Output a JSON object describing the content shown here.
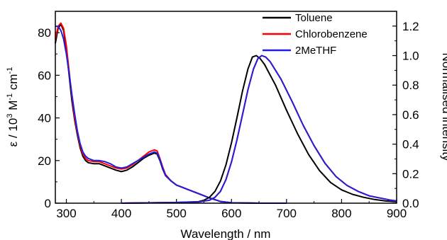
{
  "chart_data": {
    "type": "line",
    "xlabel": "Wavelength / nm",
    "ylabel_left_prefix": "ε / 10",
    "ylabel_left_exp": "3",
    "ylabel_left_mid": " M",
    "ylabel_left_exp2": "-1",
    "ylabel_left_suffix": " cm",
    "ylabel_left_exp3": "-1",
    "ylabel_right": "Normalised intensity",
    "xlim": [
      280,
      900
    ],
    "ylim_left": [
      0,
      90
    ],
    "ylim_right": [
      0,
      1.3
    ],
    "x_ticks": [
      300,
      400,
      500,
      600,
      700,
      800,
      900
    ],
    "y_ticks_left": [
      0,
      20,
      40,
      60,
      80
    ],
    "y_ticks_right": [
      0.0,
      0.2,
      0.4,
      0.6,
      0.8,
      1.0,
      1.2
    ],
    "legend_position": "top-right",
    "legend": [
      {
        "name": "Toluene",
        "color": "#000000"
      },
      {
        "name": "Chlorobenzene",
        "color": "#ff0000"
      },
      {
        "name": "2MeTHF",
        "color": "#1f1fdd"
      }
    ],
    "absorption_series": [
      {
        "name": "Toluene",
        "color": "#000000",
        "axis": "left",
        "points": [
          [
            280,
            75
          ],
          [
            285,
            82
          ],
          [
            290,
            84
          ],
          [
            295,
            81
          ],
          [
            300,
            72
          ],
          [
            305,
            60
          ],
          [
            310,
            48
          ],
          [
            315,
            39
          ],
          [
            320,
            32
          ],
          [
            325,
            26
          ],
          [
            330,
            22
          ],
          [
            335,
            20
          ],
          [
            340,
            19
          ],
          [
            350,
            18.5
          ],
          [
            360,
            18.5
          ],
          [
            370,
            17.5
          ],
          [
            380,
            16.5
          ],
          [
            390,
            15.5
          ],
          [
            400,
            14.8
          ],
          [
            410,
            15.5
          ],
          [
            420,
            17
          ],
          [
            430,
            19
          ],
          [
            440,
            21
          ],
          [
            450,
            22.5
          ],
          [
            460,
            23.5
          ],
          [
            465,
            23
          ],
          [
            470,
            20
          ],
          [
            475,
            16
          ],
          [
            480,
            13
          ],
          [
            490,
            10.5
          ],
          [
            500,
            8.5
          ],
          [
            520,
            6.5
          ],
          [
            540,
            4.5
          ],
          [
            560,
            2.5
          ],
          [
            580,
            0.8
          ],
          [
            600,
            0.2
          ],
          [
            650,
            0
          ],
          [
            700,
            0
          ]
        ]
      },
      {
        "name": "Chlorobenzene",
        "color": "#ff0000",
        "axis": "left",
        "points": [
          [
            280,
            77
          ],
          [
            285,
            83
          ],
          [
            290,
            84.5
          ],
          [
            295,
            82
          ],
          [
            300,
            74
          ],
          [
            305,
            62
          ],
          [
            310,
            50
          ],
          [
            315,
            40
          ],
          [
            320,
            33
          ],
          [
            325,
            27
          ],
          [
            330,
            23
          ],
          [
            335,
            21
          ],
          [
            340,
            20
          ],
          [
            350,
            19.5
          ],
          [
            360,
            19.5
          ],
          [
            370,
            18.5
          ],
          [
            380,
            17.5
          ],
          [
            390,
            16.5
          ],
          [
            400,
            16
          ],
          [
            410,
            16.5
          ],
          [
            420,
            18
          ],
          [
            430,
            20
          ],
          [
            440,
            22
          ],
          [
            450,
            24
          ],
          [
            460,
            25
          ],
          [
            465,
            24.5
          ],
          [
            470,
            21
          ],
          [
            475,
            17
          ],
          [
            480,
            13.5
          ],
          [
            490,
            10.5
          ],
          [
            500,
            8.5
          ],
          [
            520,
            6.5
          ],
          [
            540,
            4.5
          ],
          [
            560,
            2.5
          ],
          [
            580,
            0.8
          ],
          [
            600,
            0.2
          ],
          [
            650,
            0
          ],
          [
            700,
            0
          ]
        ]
      },
      {
        "name": "2MeTHF",
        "color": "#1f1fdd",
        "axis": "left",
        "points": [
          [
            280,
            83
          ],
          [
            285,
            83
          ],
          [
            290,
            81
          ],
          [
            295,
            77
          ],
          [
            300,
            70
          ],
          [
            305,
            61
          ],
          [
            310,
            51
          ],
          [
            315,
            42
          ],
          [
            320,
            34
          ],
          [
            325,
            28
          ],
          [
            330,
            24
          ],
          [
            335,
            22
          ],
          [
            340,
            21
          ],
          [
            350,
            20
          ],
          [
            360,
            20
          ],
          [
            370,
            19.5
          ],
          [
            380,
            18.5
          ],
          [
            390,
            17
          ],
          [
            400,
            16.5
          ],
          [
            410,
            17
          ],
          [
            420,
            18.5
          ],
          [
            430,
            20
          ],
          [
            440,
            21.5
          ],
          [
            450,
            23
          ],
          [
            460,
            24
          ],
          [
            465,
            23.5
          ],
          [
            470,
            20.5
          ],
          [
            475,
            16.5
          ],
          [
            480,
            13
          ],
          [
            490,
            10.5
          ],
          [
            500,
            8.5
          ],
          [
            520,
            6.5
          ],
          [
            540,
            4.5
          ],
          [
            560,
            2.5
          ],
          [
            580,
            0.8
          ],
          [
            600,
            0.2
          ],
          [
            650,
            0
          ],
          [
            700,
            0
          ]
        ]
      }
    ],
    "emission_series": [
      {
        "name": "Toluene",
        "color": "#000000",
        "axis": "right",
        "points": [
          [
            400,
            0
          ],
          [
            500,
            0.005
          ],
          [
            540,
            0.01
          ],
          [
            550,
            0.02
          ],
          [
            560,
            0.04
          ],
          [
            570,
            0.08
          ],
          [
            580,
            0.15
          ],
          [
            590,
            0.26
          ],
          [
            600,
            0.41
          ],
          [
            610,
            0.58
          ],
          [
            620,
            0.76
          ],
          [
            630,
            0.91
          ],
          [
            638,
            0.99
          ],
          [
            645,
            1.0
          ],
          [
            652,
            0.98
          ],
          [
            660,
            0.94
          ],
          [
            680,
            0.8
          ],
          [
            700,
            0.63
          ],
          [
            720,
            0.47
          ],
          [
            740,
            0.33
          ],
          [
            760,
            0.22
          ],
          [
            780,
            0.14
          ],
          [
            800,
            0.09
          ],
          [
            820,
            0.06
          ],
          [
            840,
            0.04
          ],
          [
            860,
            0.025
          ],
          [
            880,
            0.015
          ],
          [
            900,
            0.01
          ]
        ]
      },
      {
        "name": "Chlorobenzene",
        "color": "#ff0000",
        "axis": "right",
        "points": [
          [
            400,
            0
          ],
          [
            500,
            0.005
          ],
          [
            540,
            0.008
          ],
          [
            560,
            0.02
          ],
          [
            570,
            0.04
          ],
          [
            580,
            0.08
          ],
          [
            590,
            0.16
          ],
          [
            600,
            0.28
          ],
          [
            610,
            0.43
          ],
          [
            620,
            0.6
          ],
          [
            630,
            0.77
          ],
          [
            640,
            0.91
          ],
          [
            648,
            0.98
          ],
          [
            655,
            1.0
          ],
          [
            662,
            0.99
          ],
          [
            670,
            0.96
          ],
          [
            690,
            0.84
          ],
          [
            710,
            0.69
          ],
          [
            730,
            0.53
          ],
          [
            750,
            0.39
          ],
          [
            770,
            0.27
          ],
          [
            790,
            0.18
          ],
          [
            810,
            0.12
          ],
          [
            830,
            0.08
          ],
          [
            850,
            0.05
          ],
          [
            870,
            0.035
          ],
          [
            890,
            0.02
          ],
          [
            900,
            0.015
          ]
        ]
      },
      {
        "name": "2MeTHF",
        "color": "#1f1fdd",
        "axis": "right",
        "points": [
          [
            400,
            0
          ],
          [
            500,
            0.005
          ],
          [
            540,
            0.008
          ],
          [
            560,
            0.02
          ],
          [
            570,
            0.04
          ],
          [
            580,
            0.08
          ],
          [
            590,
            0.16
          ],
          [
            600,
            0.28
          ],
          [
            610,
            0.43
          ],
          [
            620,
            0.6
          ],
          [
            630,
            0.77
          ],
          [
            640,
            0.91
          ],
          [
            648,
            0.98
          ],
          [
            655,
            1.0
          ],
          [
            662,
            0.99
          ],
          [
            670,
            0.96
          ],
          [
            690,
            0.84
          ],
          [
            710,
            0.69
          ],
          [
            730,
            0.53
          ],
          [
            750,
            0.39
          ],
          [
            770,
            0.27
          ],
          [
            790,
            0.18
          ],
          [
            810,
            0.12
          ],
          [
            830,
            0.08
          ],
          [
            850,
            0.05
          ],
          [
            870,
            0.035
          ],
          [
            890,
            0.02
          ],
          [
            900,
            0.015
          ]
        ]
      }
    ]
  }
}
